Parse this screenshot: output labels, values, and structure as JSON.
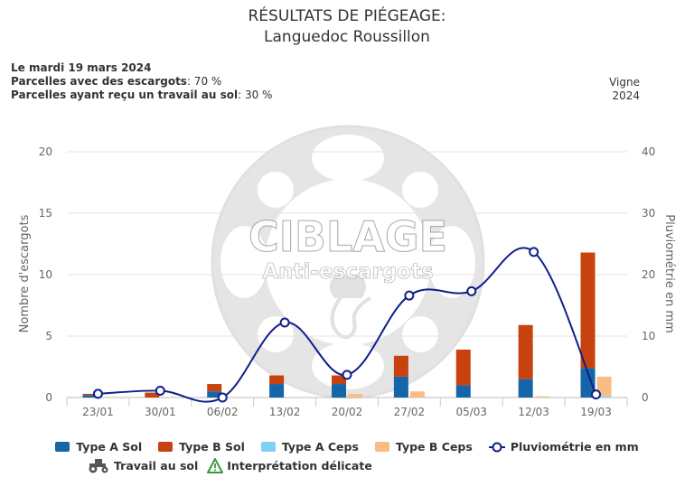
{
  "header": {
    "title_line1": "RÉSULTATS DE PIÉGEAGE:",
    "title_line2": "Languedoc Roussillon"
  },
  "info": {
    "date": "Le mardi 19 mars 2024",
    "line2_label": "Parcelles avec des escargots",
    "line2_value": ": 70 %",
    "line3_label": "Parcelles ayant reçu un travail au sol",
    "line3_value": ": 30 %",
    "crop": "Vigne",
    "year": "2024"
  },
  "watermark": {
    "line1": "CIBLAGE",
    "line2": "Anti-escargots"
  },
  "chart_data": {
    "type": "bar",
    "categories": [
      "23/01",
      "30/01",
      "06/02",
      "13/02",
      "20/02",
      "27/02",
      "05/03",
      "12/03",
      "19/03"
    ],
    "y_left": {
      "label": "Nombre d'escargots",
      "min": 0,
      "max": 20,
      "ticks": [
        0,
        5,
        10,
        15,
        20
      ]
    },
    "y_right": {
      "label": "Pluviométrie en mm",
      "min": 0,
      "max": 40,
      "ticks": [
        0,
        10,
        20,
        30,
        40
      ]
    },
    "grid": true,
    "legend_position": "bottom",
    "series": [
      {
        "name": "Type A Sol",
        "kind": "bar",
        "stack": "sol",
        "color": "#1565a8",
        "values": [
          0.2,
          0,
          0.5,
          1.1,
          1.1,
          1.7,
          1.0,
          1.5,
          2.4
        ]
      },
      {
        "name": "Type B Sol",
        "kind": "bar",
        "stack": "sol",
        "color": "#c8420f",
        "values": [
          0.1,
          0.4,
          0.6,
          0.7,
          0.7,
          1.7,
          2.9,
          4.4,
          9.4
        ]
      },
      {
        "name": "Type A Ceps",
        "kind": "bar",
        "stack": "ceps",
        "color": "#7fd0f4",
        "values": [
          0,
          0,
          0,
          0,
          0,
          0,
          0,
          0,
          0.1
        ]
      },
      {
        "name": "Type B Ceps",
        "kind": "bar",
        "stack": "ceps",
        "color": "#f8bd84",
        "values": [
          0,
          0,
          0,
          0,
          0.3,
          0.5,
          0,
          0.1,
          1.6
        ]
      },
      {
        "name": "Pluviométrie en mm",
        "kind": "line",
        "axis": "right",
        "color": "#0f1f8a",
        "values": [
          0.6,
          1.1,
          0,
          12.2,
          3.7,
          16.6,
          17.3,
          23.7,
          0.5
        ]
      }
    ],
    "legend_extra": [
      "Travail au sol",
      "Interprétation délicate"
    ]
  }
}
